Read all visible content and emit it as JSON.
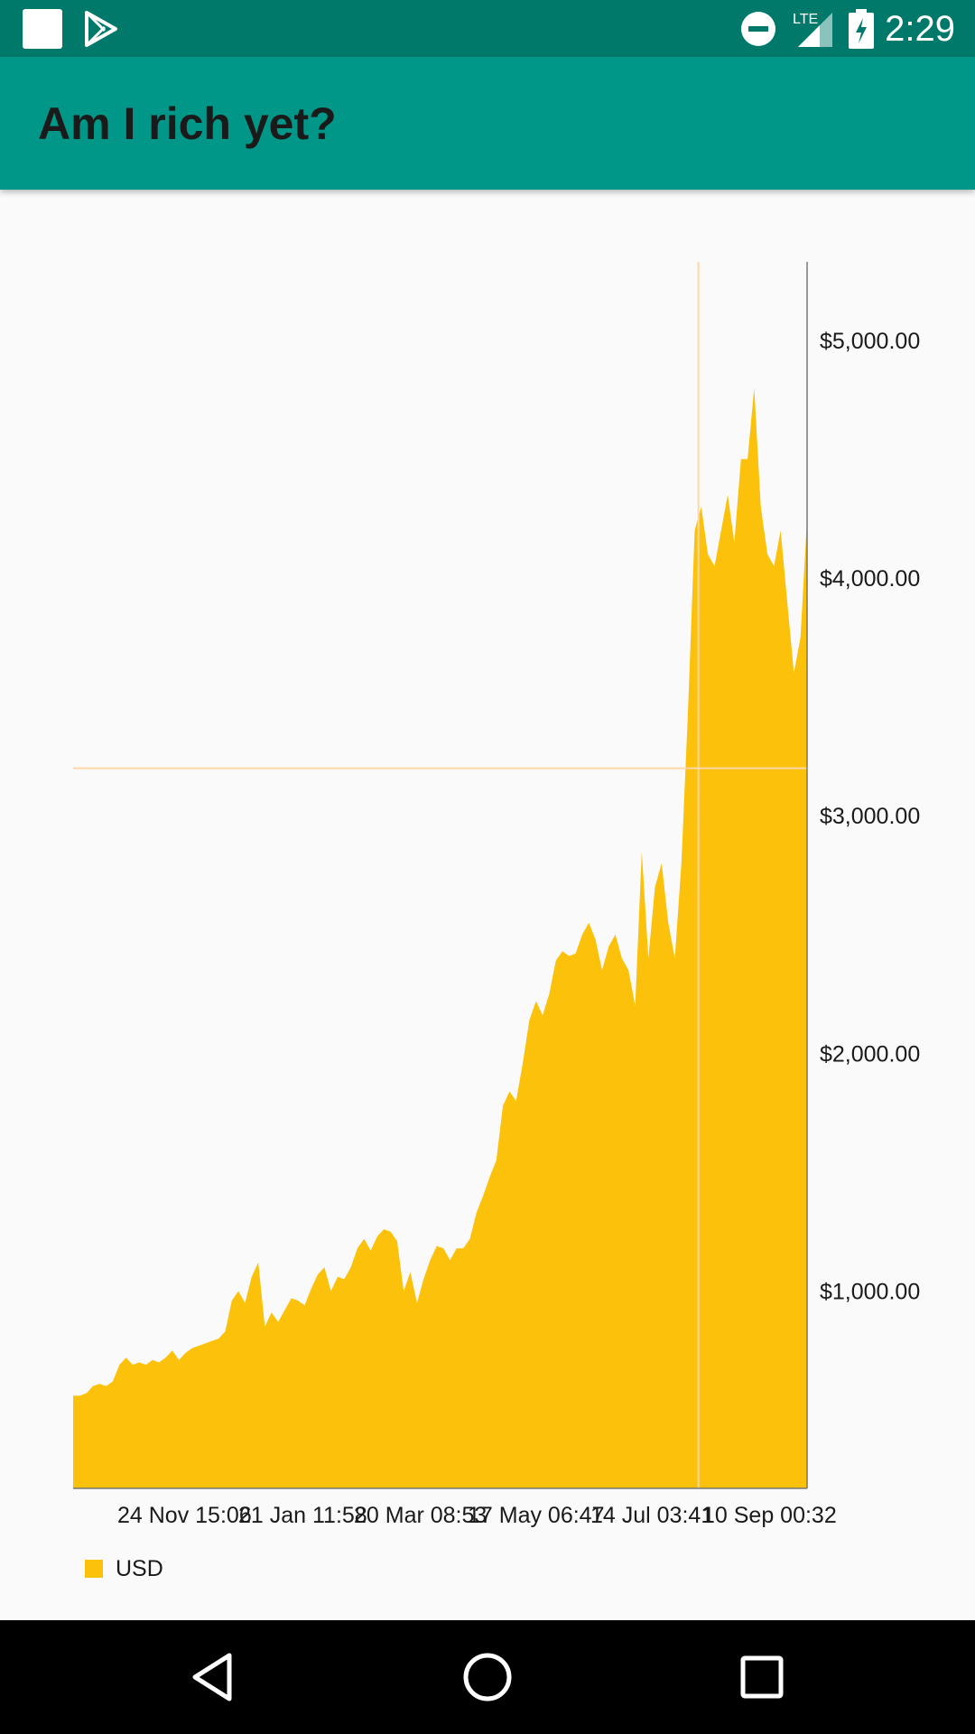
{
  "status_bar": {
    "time": "2:29",
    "network": "LTE",
    "icons": [
      "app-notification-icon",
      "play-store-icon",
      "do-not-disturb-icon",
      "lte-signal-icon",
      "battery-charging-icon"
    ]
  },
  "app_bar": {
    "title": "Am I rich yet?"
  },
  "chart_data": {
    "type": "area",
    "title": "",
    "xlabel": "",
    "ylabel": "",
    "x_tick_labels": [
      "24 Nov 15:06",
      "21 Jan 11:58",
      "20 Mar 08:53",
      "17 May 06:47",
      "14 Jul 03:41",
      "10 Sep 00:32"
    ],
    "y_tick_labels": [
      "$1,000.00",
      "$2,000.00",
      "$3,000.00",
      "$4,000.00",
      "$5,000.00"
    ],
    "y_ticks": [
      1000,
      2000,
      3000,
      4000,
      5000
    ],
    "ylim": [
      170,
      5330
    ],
    "grid": false,
    "y_axis_position": "right",
    "legend": {
      "position": "bottom-left",
      "entries": [
        {
          "label": "USD",
          "color": "#fcc10a"
        }
      ]
    },
    "highlight": {
      "x_index_fraction": 0.852,
      "value": 3200
    },
    "series": [
      {
        "name": "USD",
        "color": "#fcc10a",
        "values": [
          560,
          560,
          570,
          600,
          610,
          600,
          620,
          690,
          720,
          690,
          700,
          690,
          710,
          700,
          720,
          750,
          710,
          740,
          760,
          770,
          780,
          790,
          800,
          830,
          960,
          1000,
          950,
          1060,
          1120,
          850,
          910,
          870,
          920,
          970,
          960,
          940,
          1010,
          1070,
          1100,
          1000,
          1060,
          1050,
          1100,
          1180,
          1220,
          1170,
          1230,
          1260,
          1250,
          1210,
          1000,
          1080,
          950,
          1050,
          1130,
          1190,
          1180,
          1130,
          1180,
          1180,
          1220,
          1330,
          1400,
          1480,
          1550,
          1780,
          1840,
          1800,
          1960,
          2140,
          2220,
          2160,
          2250,
          2390,
          2430,
          2410,
          2420,
          2500,
          2550,
          2480,
          2350,
          2450,
          2500,
          2400,
          2350,
          2200,
          2850,
          2400,
          2700,
          2800,
          2550,
          2400,
          2800,
          3450,
          4200,
          4300,
          4100,
          4050,
          4200,
          4350,
          4150,
          4500,
          4500,
          4800,
          4300,
          4100,
          4050,
          4200,
          3900,
          3600,
          3750,
          4250
        ]
      }
    ]
  },
  "nav_bar": {
    "buttons": [
      "back-icon",
      "home-icon",
      "recents-icon"
    ]
  }
}
